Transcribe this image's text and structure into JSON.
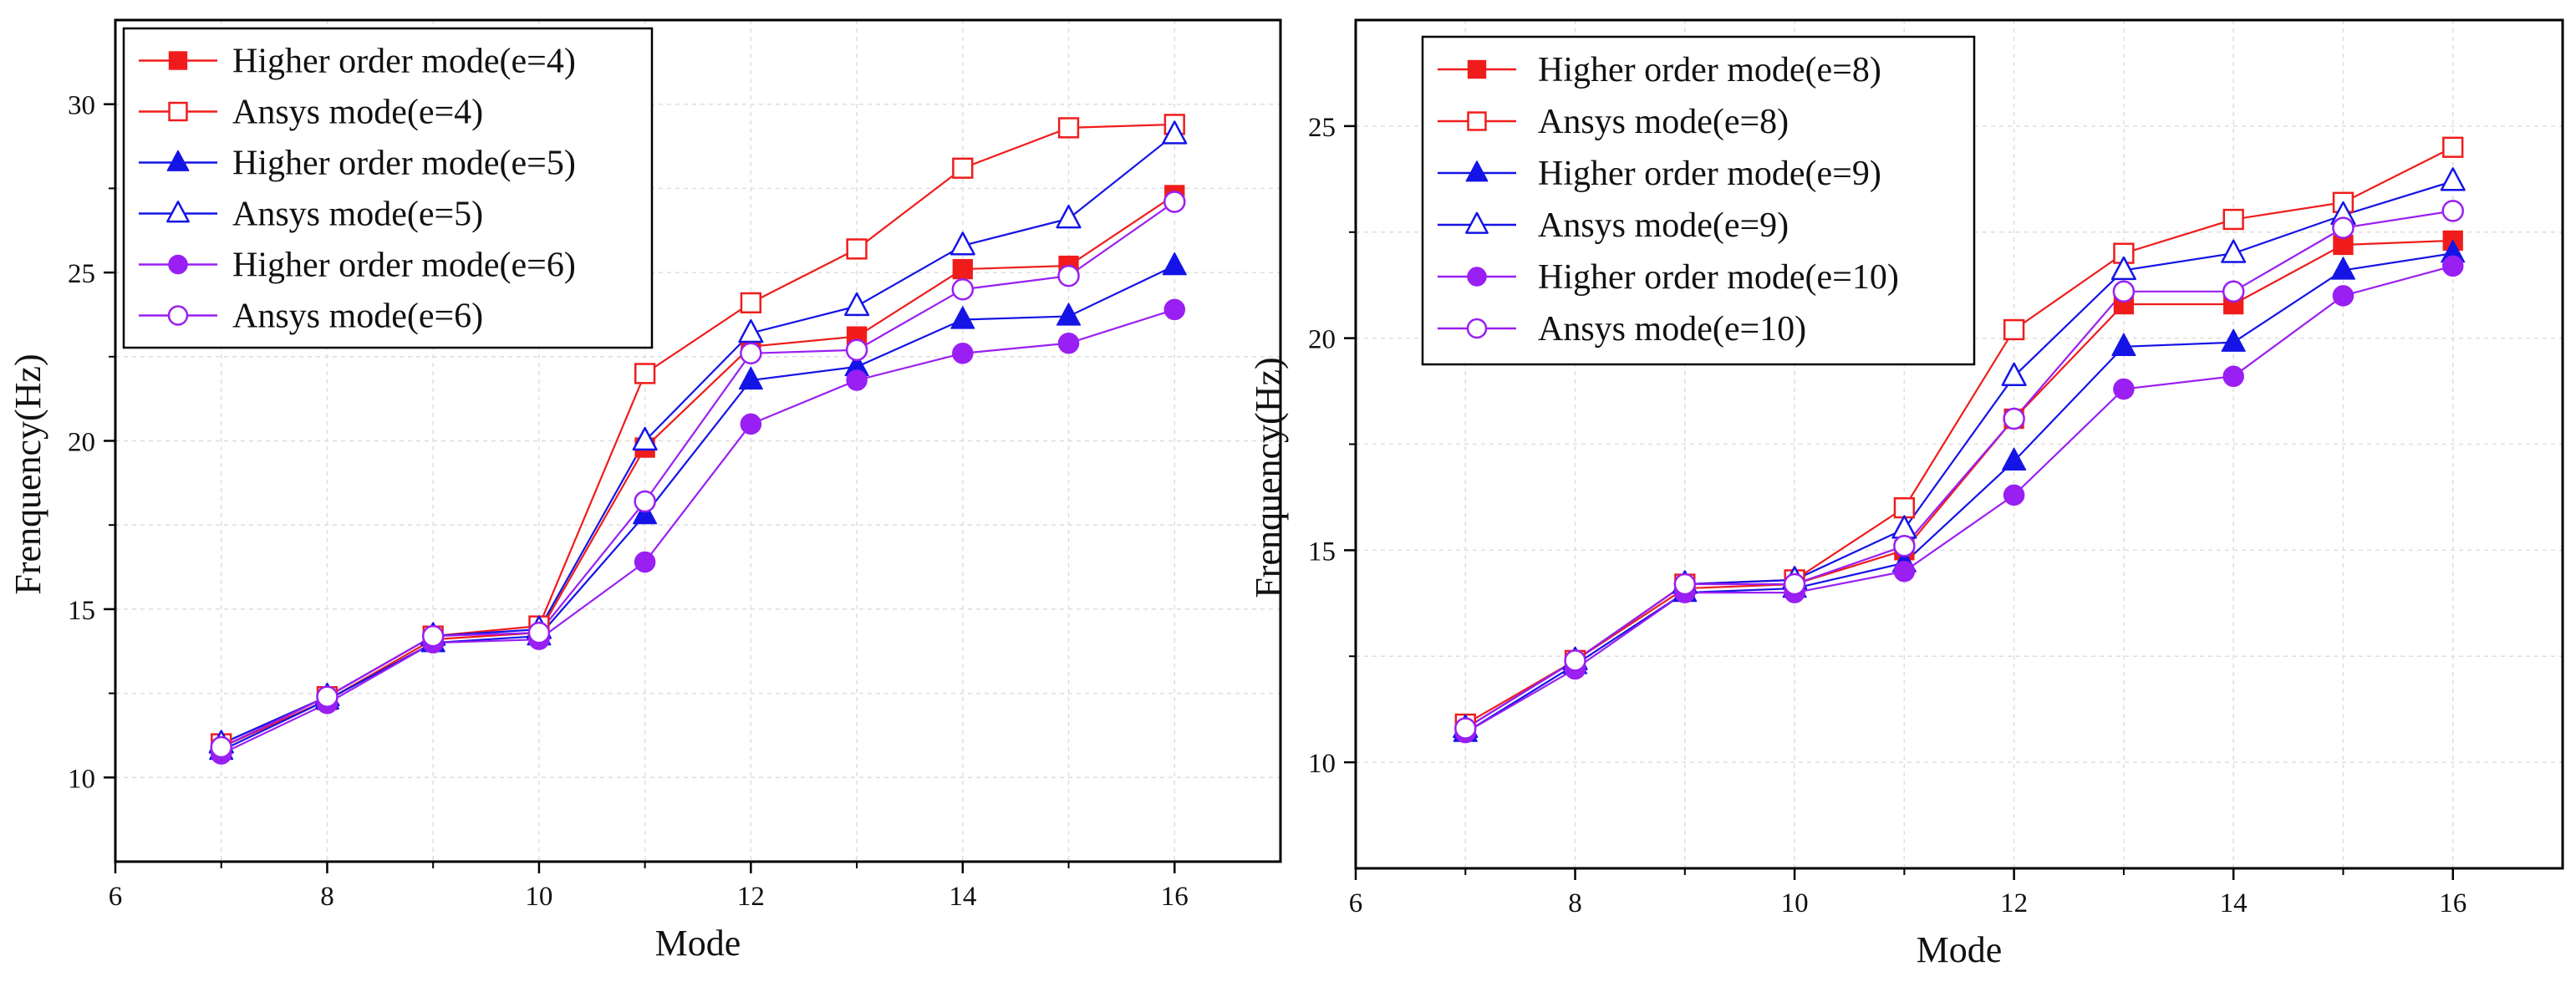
{
  "chart_data": [
    {
      "type": "line",
      "title": "",
      "xlabel": "Mode",
      "ylabel": "Frenquency(Hz)",
      "xlim": [
        6,
        17
      ],
      "ylim": [
        7.5,
        32.5
      ],
      "xticks": [
        6,
        8,
        10,
        12,
        14,
        16
      ],
      "yticks": [
        10,
        15,
        20,
        25,
        30
      ],
      "grid": true,
      "legend_position": "top-left",
      "x": [
        7,
        8,
        9,
        10,
        11,
        12,
        13,
        14,
        15,
        16
      ],
      "series": [
        {
          "name": "Higher order mode(e=4)",
          "color": "#f01c1c",
          "marker": "square-filled",
          "values": [
            10.9,
            12.3,
            14.1,
            14.3,
            19.8,
            22.8,
            23.1,
            25.1,
            25.2,
            27.3
          ]
        },
        {
          "name": "Ansys mode(e=4)",
          "color": "#f01c1c",
          "marker": "square-open",
          "values": [
            11.0,
            12.4,
            14.2,
            14.5,
            22.0,
            24.1,
            25.7,
            28.1,
            29.3,
            29.4
          ]
        },
        {
          "name": "Higher order mode(e=5)",
          "color": "#1414e6",
          "marker": "triangle-filled",
          "values": [
            10.8,
            12.3,
            14.0,
            14.2,
            17.8,
            21.8,
            22.2,
            23.6,
            23.7,
            25.2
          ]
        },
        {
          "name": "Ansys mode(e=5)",
          "color": "#1414e6",
          "marker": "triangle-open",
          "values": [
            11.0,
            12.4,
            14.2,
            14.4,
            20.0,
            23.2,
            24.0,
            25.8,
            26.6,
            29.1
          ]
        },
        {
          "name": "Higher order mode(e=6)",
          "color": "#9a1ff2",
          "marker": "circle-filled",
          "values": [
            10.7,
            12.2,
            14.0,
            14.1,
            16.4,
            20.5,
            21.8,
            22.6,
            22.9,
            23.9
          ]
        },
        {
          "name": "Ansys mode(e=6)",
          "color": "#9a1ff2",
          "marker": "circle-open",
          "values": [
            10.9,
            12.4,
            14.2,
            14.3,
            18.2,
            22.6,
            22.7,
            24.5,
            24.9,
            27.1
          ]
        }
      ]
    },
    {
      "type": "line",
      "title": "",
      "xlabel": "Mode",
      "ylabel": "Frenquency(Hz)",
      "xlim": [
        6,
        17
      ],
      "ylim": [
        7.5,
        27.5
      ],
      "xticks": [
        6,
        8,
        10,
        12,
        14,
        16
      ],
      "yticks": [
        10,
        15,
        20,
        25
      ],
      "grid": true,
      "legend_position": "top-left",
      "x": [
        7,
        8,
        9,
        10,
        11,
        12,
        13,
        14,
        15,
        16
      ],
      "series": [
        {
          "name": "Higher order mode(e=8)",
          "color": "#f01c1c",
          "marker": "square-filled",
          "values": [
            10.8,
            12.4,
            14.1,
            14.2,
            15.0,
            18.1,
            20.8,
            20.8,
            22.2,
            22.3
          ]
        },
        {
          "name": "Ansys mode(e=8)",
          "color": "#f01c1c",
          "marker": "square-open",
          "values": [
            10.9,
            12.4,
            14.2,
            14.3,
            16.0,
            20.2,
            22.0,
            22.8,
            23.2,
            24.5
          ]
        },
        {
          "name": "Higher order mode(e=9)",
          "color": "#1414e6",
          "marker": "triangle-filled",
          "values": [
            10.7,
            12.3,
            14.0,
            14.1,
            14.7,
            17.1,
            19.8,
            19.9,
            21.6,
            22.0
          ]
        },
        {
          "name": "Ansys mode(e=9)",
          "color": "#1414e6",
          "marker": "triangle-open",
          "values": [
            10.8,
            12.4,
            14.2,
            14.3,
            15.5,
            19.1,
            21.6,
            22.0,
            22.9,
            23.7
          ]
        },
        {
          "name": "Higher order mode(e=10)",
          "color": "#9a1ff2",
          "marker": "circle-filled",
          "values": [
            10.7,
            12.2,
            14.0,
            14.0,
            14.5,
            16.3,
            18.8,
            19.1,
            21.0,
            21.7
          ]
        },
        {
          "name": "Ansys mode(e=10)",
          "color": "#9a1ff2",
          "marker": "circle-open",
          "values": [
            10.8,
            12.4,
            14.2,
            14.2,
            15.1,
            18.1,
            21.1,
            21.1,
            22.6,
            23.0
          ]
        }
      ]
    }
  ]
}
